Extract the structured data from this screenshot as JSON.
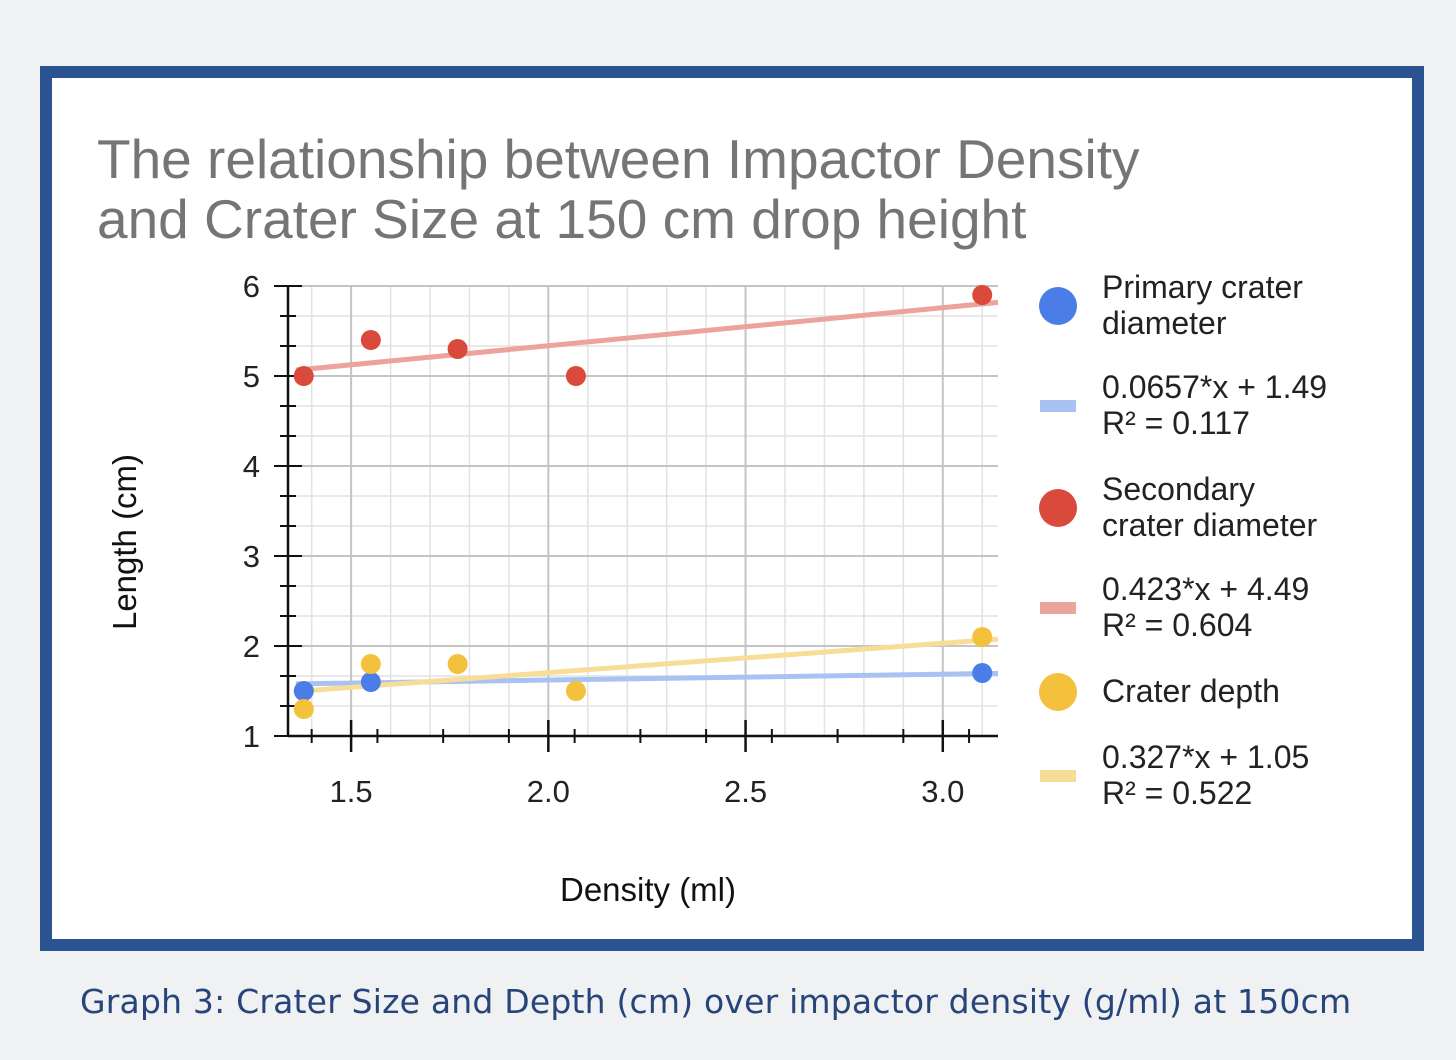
{
  "caption": "Graph 3: Crater Size and Depth (cm) over impactor density (g/ml) at 150cm",
  "chart_data": {
    "type": "scatter",
    "title": [
      "The relationship between Impactor Density",
      "and Crater Size at 150 cm drop height"
    ],
    "xlabel": "Density (ml)",
    "ylabel": "Length (cm)",
    "xlim": [
      1.34,
      3.14
    ],
    "ylim": [
      1,
      6
    ],
    "xticks": [
      "1.5",
      "2.0",
      "2.5",
      "3.0"
    ],
    "xtick_values": [
      1.5,
      2.0,
      2.5,
      3.0
    ],
    "yticks": [
      "1",
      "2",
      "3",
      "4",
      "5",
      "6"
    ],
    "ytick_values": [
      1,
      2,
      3,
      4,
      5,
      6
    ],
    "grid": true,
    "legend_position": "right",
    "series": [
      {
        "name": "Primary crater diameter",
        "color": "#4a7ee6",
        "x": [
          1.38,
          1.55,
          3.1
        ],
        "y": [
          1.5,
          1.6,
          1.7
        ],
        "trend": {
          "label": [
            "0.0657*x + 1.49",
            "R² = 0.117"
          ],
          "slope": 0.0657,
          "intercept": 1.49,
          "color": "#a8c3f3"
        }
      },
      {
        "name": "Secondary crater diameter",
        "color": "#d94a3c",
        "x": [
          1.38,
          1.55,
          1.77,
          2.07,
          3.1
        ],
        "y": [
          5.0,
          5.4,
          5.3,
          5.0,
          5.9
        ],
        "trend": {
          "label": [
            "0.423*x + 4.49",
            "R² = 0.604"
          ],
          "slope": 0.423,
          "intercept": 4.49,
          "color": "#eba39c"
        }
      },
      {
        "name": "Crater depth",
        "color": "#f3c13c",
        "x": [
          1.38,
          1.55,
          1.77,
          2.07,
          3.1
        ],
        "y": [
          1.3,
          1.8,
          1.8,
          1.5,
          2.1
        ],
        "trend": {
          "label": [
            "0.327*x + 1.05",
            "R² = 0.522"
          ],
          "slope": 0.327,
          "intercept": 1.05,
          "color": "#f7dd95"
        }
      }
    ],
    "legend": [
      {
        "kind": "dot",
        "series": 0,
        "lines": [
          "Primary crater",
          "diameter"
        ]
      },
      {
        "kind": "line",
        "series": 0,
        "lines": [
          "0.0657*x + 1.49",
          "R² = 0.117"
        ]
      },
      {
        "kind": "dot",
        "series": 1,
        "lines": [
          "Secondary",
          "crater diameter"
        ]
      },
      {
        "kind": "line",
        "series": 1,
        "lines": [
          "0.423*x + 4.49",
          "R² = 0.604"
        ]
      },
      {
        "kind": "dot",
        "series": 2,
        "lines": [
          "Crater depth"
        ]
      },
      {
        "kind": "line",
        "series": 2,
        "lines": [
          "0.327*x + 1.05",
          "R² = 0.522"
        ]
      }
    ]
  }
}
